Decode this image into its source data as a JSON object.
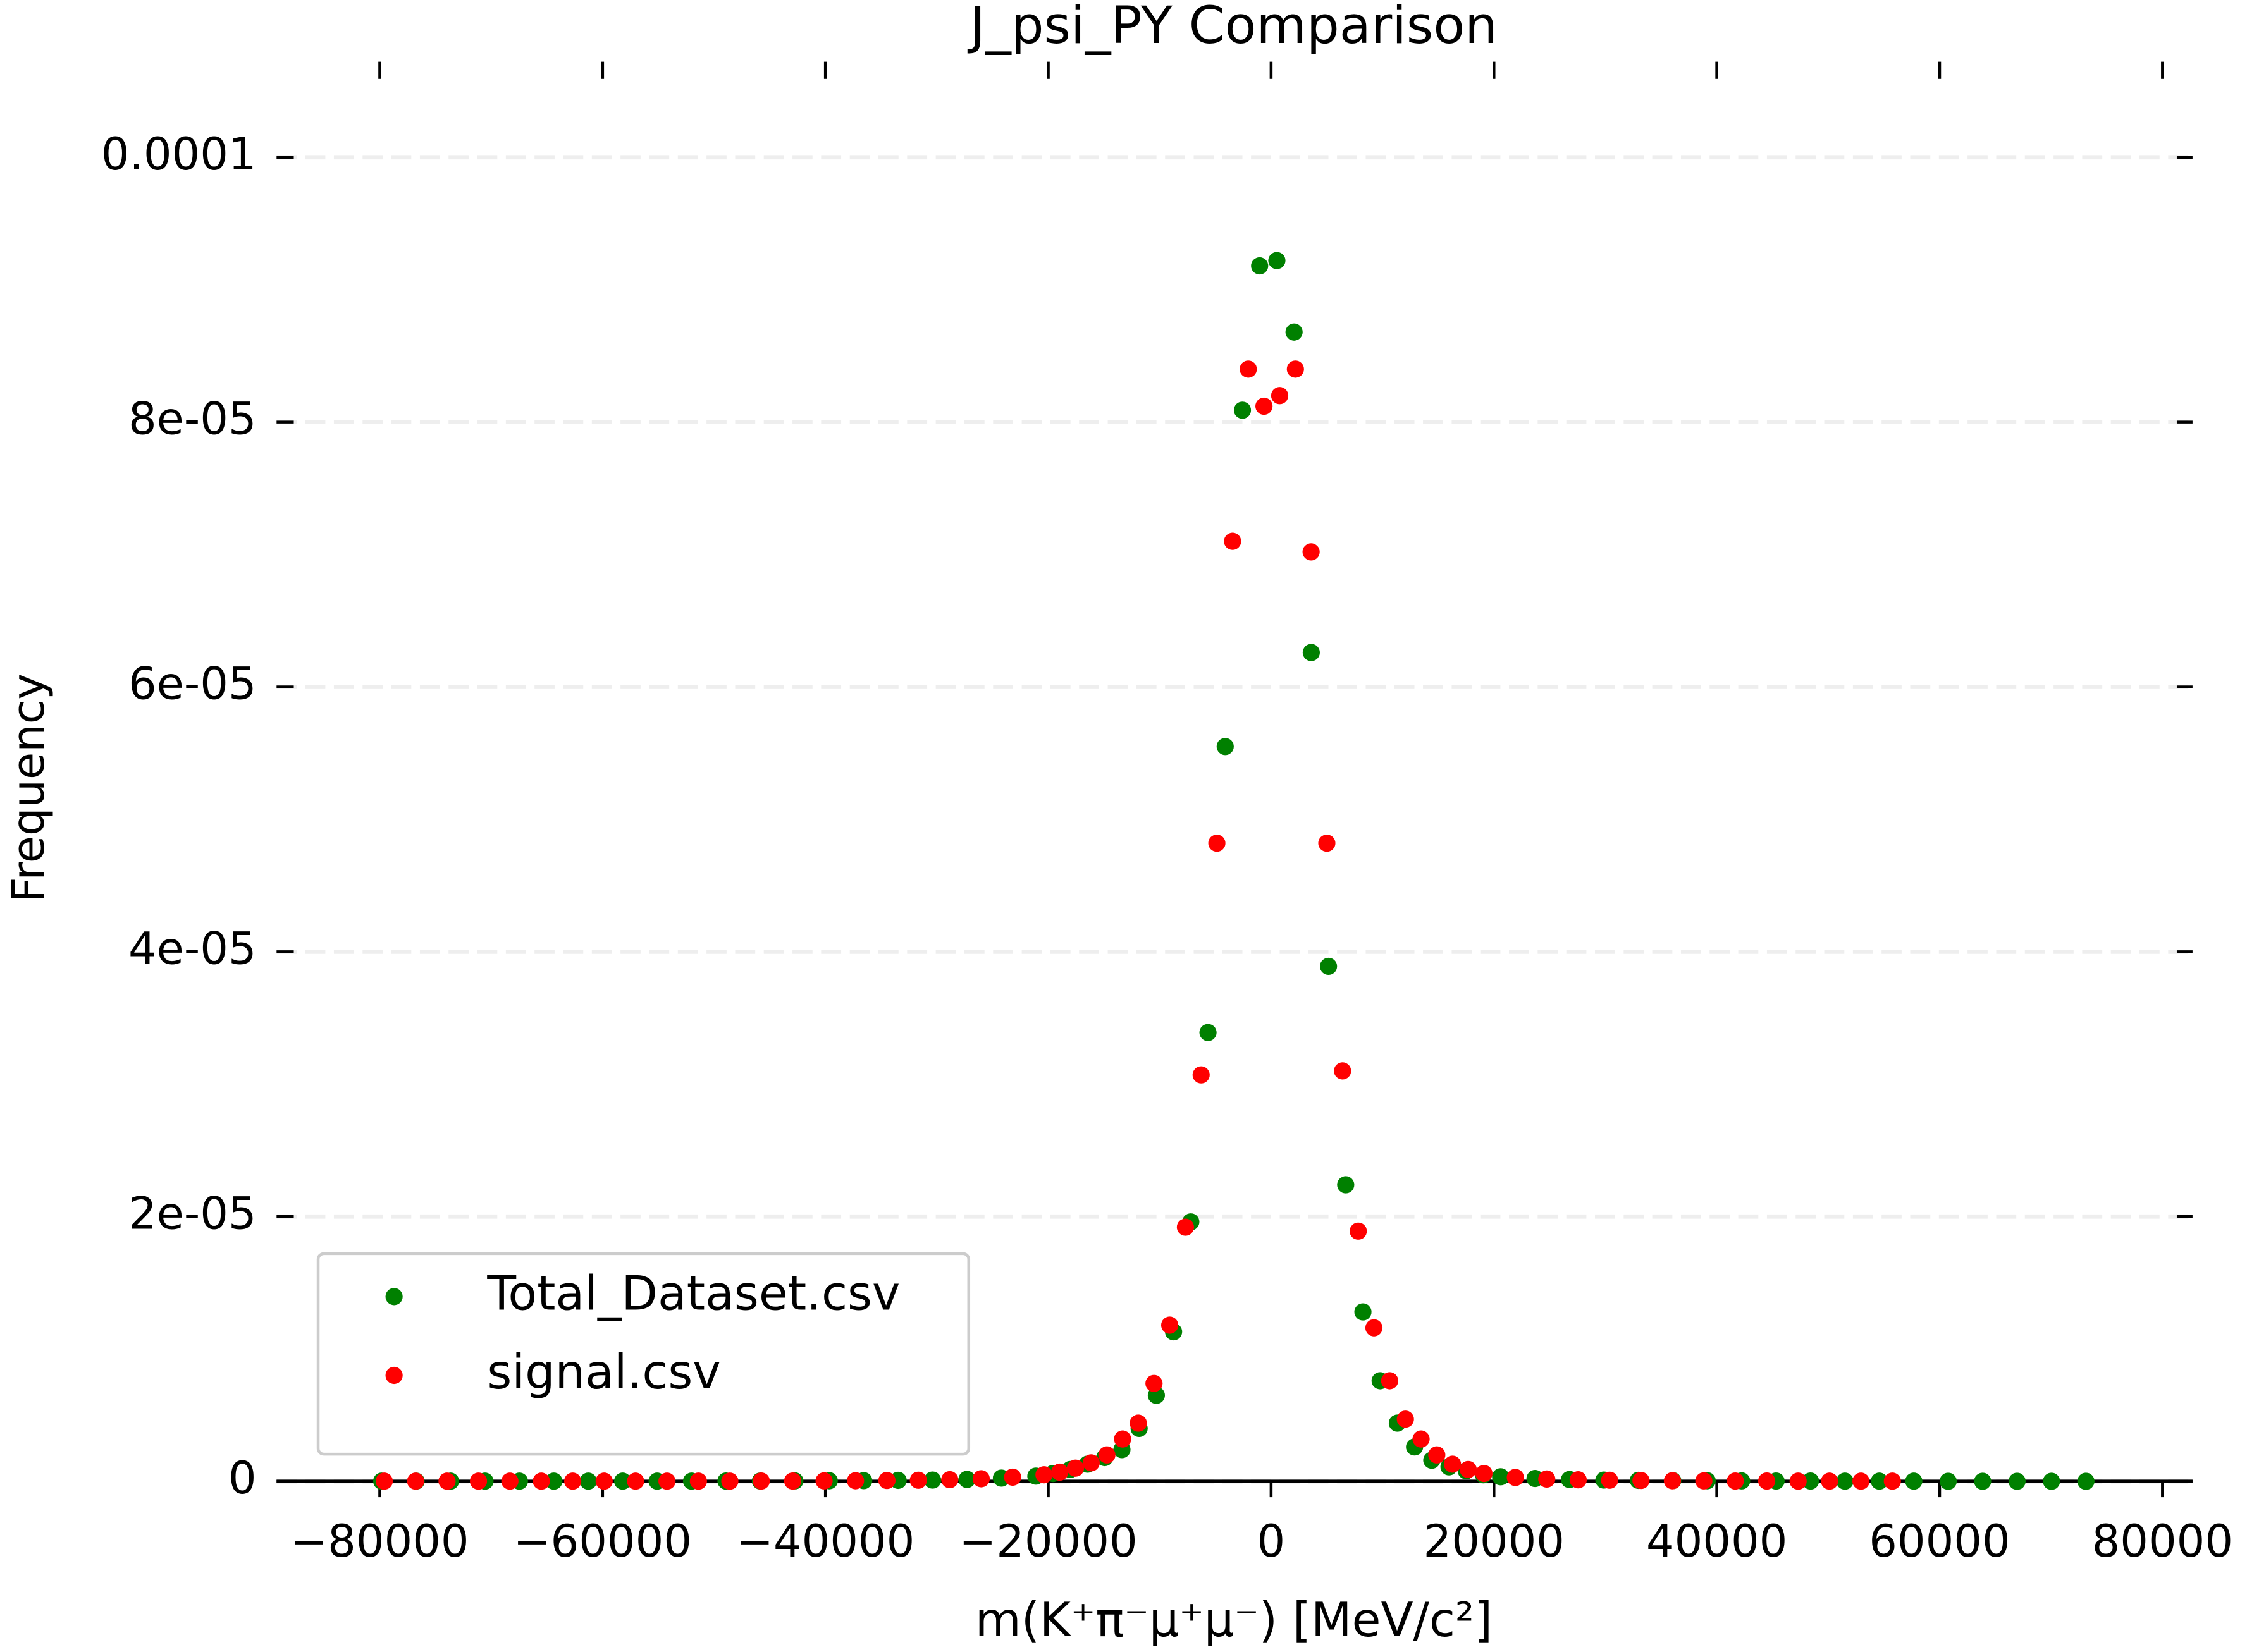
{
  "chart_data": {
    "type": "scatter",
    "title": "J_psi_PY Comparison",
    "xlabel": "m(K⁺π⁻μ⁺μ⁻) [MeV/c²]",
    "ylabel": "Frequency",
    "xlim": [
      -89260,
      82700
    ],
    "ylim": [
      0,
      0.000107
    ],
    "xticks": [
      {
        "value": -80000,
        "label": "−80000"
      },
      {
        "value": -60000,
        "label": "−60000"
      },
      {
        "value": -40000,
        "label": "−40000"
      },
      {
        "value": -20000,
        "label": "−20000"
      },
      0,
      20000,
      40000,
      60000,
      80000
    ],
    "yticks": [
      0,
      {
        "value": 2e-05,
        "label": "2e-05"
      },
      {
        "value": 4e-05,
        "label": "4e-05"
      },
      {
        "value": 6e-05,
        "label": "6e-05"
      },
      {
        "value": 8e-05,
        "label": "8e-05"
      },
      {
        "value": 0.0001,
        "label": "0.0001"
      }
    ],
    "grid": true,
    "legend": "lower left",
    "series": [
      {
        "name": "Total_Dataset.csv",
        "color": "#008000",
        "x": [
          -79825,
          -76735,
          -73645,
          -70555,
          -67465,
          -64375,
          -61285,
          -58195,
          -55105,
          -52015,
          -48925,
          -45835,
          -42745,
          -39655,
          -36565,
          -33475,
          -30385,
          -27295,
          -24205,
          -21115,
          -19570,
          -18025,
          -16480,
          -14935,
          -13390,
          -11845,
          -10300,
          -8755,
          -7210,
          -5665,
          -4120,
          -2575,
          -1030,
          515,
          2060,
          3605,
          5150,
          6695,
          8240,
          9785,
          11330,
          12875,
          14420,
          15965,
          17510,
          19055,
          20600,
          23690,
          26780,
          29870,
          32960,
          36050,
          39140,
          42230,
          45320,
          48410,
          51500,
          54590,
          57680,
          60770,
          63860,
          66950,
          70040,
          73130
        ],
        "values": [
          2e-08,
          2e-08,
          2e-08,
          2e-08,
          2e-08,
          2e-08,
          2e-08,
          2e-08,
          2e-08,
          2e-08,
          3e-08,
          3e-08,
          4e-08,
          5e-08,
          6e-08,
          8e-08,
          1e-07,
          1.5e-07,
          2.5e-07,
          4e-07,
          6e-07,
          9e-07,
          1.3e-06,
          1.8e-06,
          2.4e-06,
          4e-06,
          6.5e-06,
          1.13e-05,
          1.96e-05,
          3.39e-05,
          5.55e-05,
          8.09e-05,
          9.18e-05,
          9.22e-05,
          8.68e-05,
          6.26e-05,
          3.89e-05,
          2.24e-05,
          1.28e-05,
          7.6e-06,
          4.4e-06,
          2.6e-06,
          1.6e-06,
          1.1e-06,
          8e-07,
          5e-07,
          3.5e-07,
          2.2e-07,
          1.4e-07,
          1e-07,
          8e-08,
          6e-08,
          5e-08,
          4e-08,
          3e-08,
          3e-08,
          2e-08,
          2e-08,
          2e-08,
          1e-08,
          1e-08,
          1e-08,
          1e-08,
          1e-08
        ]
      },
      {
        "name": "signal.csv",
        "color": "#ff0000",
        "x": [
          -79600,
          -76780,
          -73960,
          -71140,
          -68320,
          -65500,
          -62680,
          -59860,
          -57040,
          -54220,
          -51400,
          -48580,
          -45760,
          -42940,
          -40120,
          -37300,
          -34480,
          -31660,
          -28840,
          -26020,
          -23200,
          -20380,
          -18970,
          -17560,
          -16150,
          -14740,
          -13330,
          -11920,
          -10510,
          -9100,
          -7690,
          -6280,
          -4870,
          -3460,
          -2050,
          -640,
          770,
          2180,
          3590,
          5000,
          6410,
          7820,
          9230,
          10640,
          12050,
          13460,
          14870,
          16280,
          17690,
          19100,
          21920,
          24740,
          27560,
          30380,
          33200,
          36020,
          38840,
          41660,
          44480,
          47300,
          50120,
          52940,
          55760
        ],
        "values": [
          2e-08,
          2e-08,
          2e-08,
          2e-08,
          2e-08,
          2e-08,
          2e-08,
          2e-08,
          2e-08,
          2e-08,
          2e-08,
          2e-08,
          3e-08,
          3e-08,
          4e-08,
          5e-08,
          7e-08,
          9e-08,
          1.3e-07,
          2e-07,
          3.2e-07,
          5e-07,
          7e-07,
          1e-06,
          1.4e-06,
          2e-06,
          3.2e-06,
          4.4e-06,
          7.4e-06,
          1.18e-05,
          1.92e-05,
          3.07e-05,
          4.82e-05,
          7.1e-05,
          8.4e-05,
          8.12e-05,
          8.2e-05,
          8.4e-05,
          7.02e-05,
          4.82e-05,
          3.1e-05,
          1.89e-05,
          1.16e-05,
          7.6e-06,
          4.7e-06,
          3.2e-06,
          2e-06,
          1.3e-06,
          9e-07,
          6e-07,
          3e-07,
          1.8e-07,
          1.2e-07,
          9e-08,
          7e-08,
          5e-08,
          4e-08,
          3e-08,
          3e-08,
          2e-08,
          2e-08,
          2e-08,
          2e-08
        ]
      }
    ]
  }
}
